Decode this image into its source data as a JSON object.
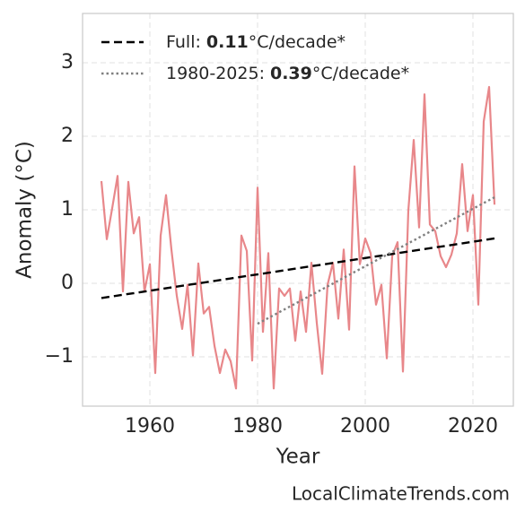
{
  "chart_data": {
    "type": "line",
    "xlabel": "Year",
    "ylabel": "Anomaly (°C)",
    "watermark": "LocalClimateTrends.com",
    "xlim": [
      1947.5,
      2027.5
    ],
    "ylim": [
      -1.67,
      3.67
    ],
    "xticks": [
      1960,
      1980,
      2000,
      2020
    ],
    "yticks": [
      {
        "value": -1,
        "label": "−1"
      },
      0,
      1,
      2,
      3
    ],
    "grid": true,
    "legend_position": "upper left",
    "series": [
      {
        "color": "#e8878a",
        "x": [
          1951,
          1952,
          1953,
          1954,
          1955,
          1956,
          1957,
          1958,
          1959,
          1960,
          1961,
          1962,
          1963,
          1964,
          1965,
          1966,
          1967,
          1968,
          1969,
          1970,
          1971,
          1972,
          1973,
          1974,
          1975,
          1976,
          1977,
          1978,
          1979,
          1980,
          1981,
          1982,
          1983,
          1984,
          1985,
          1986,
          1987,
          1988,
          1989,
          1990,
          1991,
          1992,
          1993,
          1994,
          1995,
          1996,
          1997,
          1998,
          1999,
          2000,
          2001,
          2002,
          2003,
          2004,
          2005,
          2006,
          2007,
          2008,
          2009,
          2010,
          2011,
          2012,
          2013,
          2014,
          2015,
          2016,
          2017,
          2018,
          2019,
          2020,
          2021,
          2022,
          2023,
          2024
        ],
        "values": [
          1.39,
          0.6,
          1.02,
          1.46,
          -0.11,
          1.38,
          0.68,
          0.9,
          -0.11,
          0.26,
          -1.22,
          0.65,
          1.2,
          0.46,
          -0.17,
          -0.62,
          -0.02,
          -0.98,
          0.27,
          -0.41,
          -0.32,
          -0.85,
          -1.22,
          -0.9,
          -1.06,
          -1.43,
          0.65,
          0.44,
          -1.05,
          1.3,
          -0.66,
          0.41,
          -1.43,
          -0.07,
          -0.17,
          -0.07,
          -0.78,
          -0.11,
          -0.66,
          0.28,
          -0.54,
          -1.23,
          -0.02,
          0.28,
          -0.48,
          0.46,
          -0.63,
          1.59,
          0.26,
          0.61,
          0.41,
          -0.29,
          -0.02,
          -1.02,
          0.37,
          0.56,
          -1.2,
          0.99,
          1.95,
          0.76,
          2.57,
          0.8,
          0.71,
          0.37,
          0.22,
          0.39,
          0.68,
          1.62,
          0.71,
          1.2,
          -0.29,
          2.2,
          2.67,
          1.07
        ]
      },
      {
        "color": "#000000",
        "dash": "dashed",
        "x": [
          1951,
          2024
        ],
        "values": [
          -0.2,
          0.61
        ],
        "legend": {
          "label": "Full:",
          "rate": 0.11,
          "unit": "°C/decade*"
        }
      },
      {
        "color": "#808080",
        "dash": "dotted",
        "x": [
          1980,
          2024
        ],
        "values": [
          -0.55,
          1.17
        ],
        "legend": {
          "label": "1980-2025:",
          "rate": 0.39,
          "unit": "°C/decade*"
        }
      }
    ]
  }
}
